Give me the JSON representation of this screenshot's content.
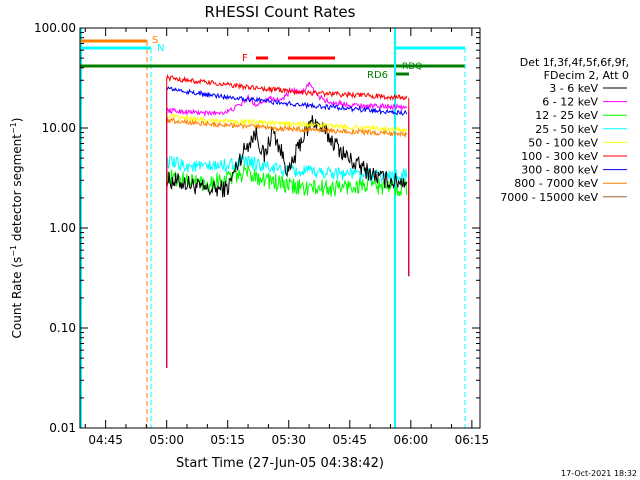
{
  "chart_data": {
    "type": "line",
    "title": "RHESSI Count Rates",
    "xlabel": "Start Time (27-Jun-05 04:38:42)",
    "ylabel": "Count Rate (s⁻¹ detector segment⁻¹)",
    "y_scale": "log",
    "ylim": [
      0.01,
      100.0
    ],
    "xlim_minutes_of_day": [
      278.7,
      377.0
    ],
    "x_ticks": [
      {
        "m": 285,
        "label": "04:45"
      },
      {
        "m": 300,
        "label": "05:00"
      },
      {
        "m": 315,
        "label": "05:15"
      },
      {
        "m": 330,
        "label": "05:30"
      },
      {
        "m": 345,
        "label": "05:45"
      },
      {
        "m": 360,
        "label": "06:00"
      },
      {
        "m": 375,
        "label": "06:15"
      }
    ],
    "y_ticks": [
      {
        "v": 0.01,
        "label": "0.01"
      },
      {
        "v": 0.1,
        "label": "0.10"
      },
      {
        "v": 1.0,
        "label": "1.00"
      },
      {
        "v": 10.0,
        "label": "10.00"
      },
      {
        "v": 100.0,
        "label": "100.00"
      }
    ],
    "legend_header": [
      "Det 1f,3f,4f,5f,6f,9f,",
      "FDecim 2, Att 0"
    ],
    "legend_position": "right",
    "series": [
      {
        "name": "3 - 6 keV",
        "color": "#000000",
        "points": [
          [
            300,
            3.0
          ],
          [
            305,
            2.8
          ],
          [
            310,
            2.4
          ],
          [
            315,
            2.5
          ],
          [
            318,
            5.0
          ],
          [
            320,
            7.0
          ],
          [
            322,
            9.0
          ],
          [
            324,
            5.0
          ],
          [
            326,
            9.5
          ],
          [
            328,
            6.0
          ],
          [
            330,
            3.5
          ],
          [
            333,
            7.5
          ],
          [
            336,
            12.0
          ],
          [
            339,
            9.0
          ],
          [
            342,
            6.5
          ],
          [
            345,
            4.8
          ],
          [
            348,
            4.0
          ],
          [
            352,
            3.2
          ],
          [
            356,
            2.9
          ],
          [
            359,
            3.0
          ]
        ]
      },
      {
        "name": "6 - 12 keV",
        "color": "#ff00ff",
        "points": [
          [
            300,
            15.0
          ],
          [
            305,
            14.5
          ],
          [
            310,
            14.0
          ],
          [
            315,
            14.5
          ],
          [
            318,
            17.0
          ],
          [
            320,
            20.0
          ],
          [
            322,
            17.0
          ],
          [
            325,
            20.0
          ],
          [
            328,
            19.0
          ],
          [
            331,
            24.0
          ],
          [
            333,
            22.0
          ],
          [
            335,
            28.0
          ],
          [
            337,
            21.0
          ],
          [
            340,
            18.0
          ],
          [
            343,
            17.5
          ],
          [
            346,
            17.0
          ],
          [
            350,
            16.5
          ],
          [
            355,
            16.5
          ],
          [
            359,
            16.0
          ]
        ]
      },
      {
        "name": "12 - 25 keV",
        "color": "#00ff00",
        "points": [
          [
            300,
            3.2
          ],
          [
            305,
            3.0
          ],
          [
            310,
            2.8
          ],
          [
            315,
            3.2
          ],
          [
            320,
            3.6
          ],
          [
            325,
            3.0
          ],
          [
            330,
            2.6
          ],
          [
            335,
            2.5
          ],
          [
            340,
            2.5
          ],
          [
            345,
            2.6
          ],
          [
            350,
            2.7
          ],
          [
            355,
            2.5
          ],
          [
            359,
            2.6
          ]
        ]
      },
      {
        "name": "25 - 50 keV",
        "color": "#00ffff",
        "points": [
          [
            300,
            4.5
          ],
          [
            305,
            4.2
          ],
          [
            310,
            4.0
          ],
          [
            315,
            4.3
          ],
          [
            320,
            4.6
          ],
          [
            325,
            4.0
          ],
          [
            330,
            3.7
          ],
          [
            335,
            3.6
          ],
          [
            340,
            3.6
          ],
          [
            345,
            3.5
          ],
          [
            350,
            3.4
          ],
          [
            355,
            3.3
          ],
          [
            359,
            3.4
          ]
        ]
      },
      {
        "name": "50 - 100 keV",
        "color": "#ffff00",
        "points": [
          [
            300,
            13.0
          ],
          [
            305,
            12.5
          ],
          [
            310,
            12.0
          ],
          [
            315,
            11.8
          ],
          [
            320,
            11.5
          ],
          [
            325,
            11.2
          ],
          [
            330,
            11.0
          ],
          [
            335,
            10.8
          ],
          [
            340,
            10.5
          ],
          [
            345,
            10.2
          ],
          [
            350,
            10.0
          ],
          [
            355,
            9.8
          ],
          [
            359,
            9.6
          ]
        ]
      },
      {
        "name": "100 - 300 keV",
        "color": "#ff0000",
        "points": [
          [
            300,
            32.0
          ],
          [
            305,
            30.0
          ],
          [
            310,
            28.5
          ],
          [
            315,
            27.0
          ],
          [
            320,
            25.5
          ],
          [
            325,
            24.5
          ],
          [
            330,
            23.5
          ],
          [
            335,
            22.5
          ],
          [
            340,
            22.0
          ],
          [
            345,
            21.5
          ],
          [
            350,
            21.0
          ],
          [
            355,
            20.5
          ],
          [
            359,
            20.0
          ]
        ]
      },
      {
        "name": "300 - 800 keV",
        "color": "#0000ff",
        "points": [
          [
            300,
            25.0
          ],
          [
            305,
            23.0
          ],
          [
            310,
            21.5
          ],
          [
            315,
            20.5
          ],
          [
            320,
            19.5
          ],
          [
            325,
            18.5
          ],
          [
            330,
            17.5
          ],
          [
            335,
            16.8
          ],
          [
            340,
            16.2
          ],
          [
            345,
            15.6
          ],
          [
            350,
            15.0
          ],
          [
            355,
            14.5
          ],
          [
            359,
            14.2
          ]
        ]
      },
      {
        "name": "800 - 7000 keV",
        "color": "#ff8000",
        "points": [
          [
            300,
            12.0
          ],
          [
            305,
            11.5
          ],
          [
            310,
            11.0
          ],
          [
            315,
            10.7
          ],
          [
            320,
            10.4
          ],
          [
            325,
            10.0
          ],
          [
            330,
            9.8
          ],
          [
            335,
            9.6
          ],
          [
            340,
            9.4
          ],
          [
            345,
            9.2
          ],
          [
            350,
            9.0
          ],
          [
            355,
            8.8
          ],
          [
            359,
            8.6
          ]
        ]
      },
      {
        "name": "7000 - 15000 keV",
        "color": "#996633",
        "points": []
      }
    ],
    "annotations": [
      "S",
      "N",
      "F",
      "RD6",
      "RDQ"
    ],
    "colors": {
      "axes": "#000000",
      "background": "#ffffff",
      "S_bar": "#ff8000",
      "N_bar": "#00ffff",
      "F_bar": "#ff0000",
      "RD_bar": "#008000"
    }
  },
  "footer": {
    "date": "17-Oct-2021 18:32"
  }
}
